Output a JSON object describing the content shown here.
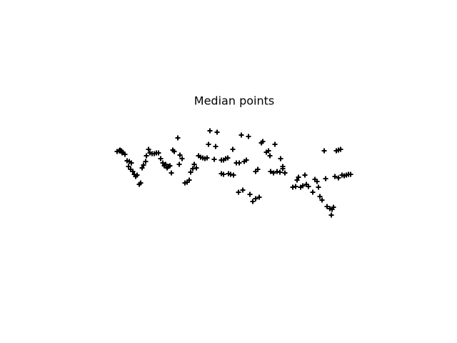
{
  "chart_data": {
    "type": "scatter",
    "title": "Median points",
    "color": "#000000",
    "marker": "+",
    "xlim": [
      160,
      500
    ],
    "ylim": [
      170,
      300
    ],
    "x": [
      164,
      167,
      170,
      172,
      175,
      168,
      171,
      178,
      181,
      184,
      180,
      183,
      186,
      188,
      190,
      192,
      195,
      197,
      199,
      201,
      204,
      205,
      208,
      210,
      213,
      216,
      219,
      222,
      225,
      228,
      230,
      232,
      234,
      236,
      238,
      240,
      242,
      244,
      249,
      252,
      255,
      251,
      259,
      262,
      265,
      267,
      270,
      272,
      275,
      278,
      281,
      284,
      287,
      290,
      294,
      304,
      292,
      302,
      300,
      310,
      313,
      316,
      319,
      310,
      313,
      320,
      323,
      327,
      326,
      331,
      335,
      338,
      348,
      342,
      345,
      334,
      340,
      350,
      354,
      358,
      363,
      358,
      361,
      366,
      368,
      373,
      376,
      378,
      385,
      393,
      379,
      383,
      388,
      392,
      396,
      399,
      396,
      410,
      414,
      416,
      418,
      421,
      424,
      427,
      429,
      432,
      438,
      441,
      444,
      446,
      448,
      451,
      456,
      454,
      458,
      462,
      465,
      464,
      467,
      469,
      471,
      474,
      477,
      474,
      479,
      482,
      485,
      488,
      491
    ],
    "values": [
      268,
      269,
      269,
      267,
      264,
      270,
      266,
      255,
      254,
      252,
      247,
      243,
      240,
      236,
      233,
      235,
      222,
      224,
      245,
      249,
      254,
      262,
      271,
      266,
      265,
      265,
      266,
      266,
      258,
      252,
      248,
      250,
      245,
      247,
      248,
      238,
      270,
      268,
      287,
      263,
      258,
      250,
      224,
      225,
      228,
      239,
      244,
      250,
      245,
      262,
      260,
      259,
      258,
      259,
      297,
      295,
      278,
      275,
      257,
      256,
      256,
      258,
      259,
      237,
      236,
      237,
      236,
      235,
      271,
      252,
      252,
      291,
      289,
      254,
      256,
      211,
      214,
      208,
      198,
      202,
      204,
      240,
      243,
      280,
      282,
      267,
      269,
      262,
      278,
      258,
      240,
      238,
      240,
      239,
      244,
      238,
      247,
      218,
      219,
      228,
      232,
      218,
      220,
      235,
      222,
      219,
      211,
      229,
      226,
      218,
      205,
      200,
      230,
      269,
      191,
      188,
      187,
      179,
      190,
      233,
      269,
      270,
      271,
      231,
      235,
      234,
      235,
      236,
      236
    ]
  }
}
